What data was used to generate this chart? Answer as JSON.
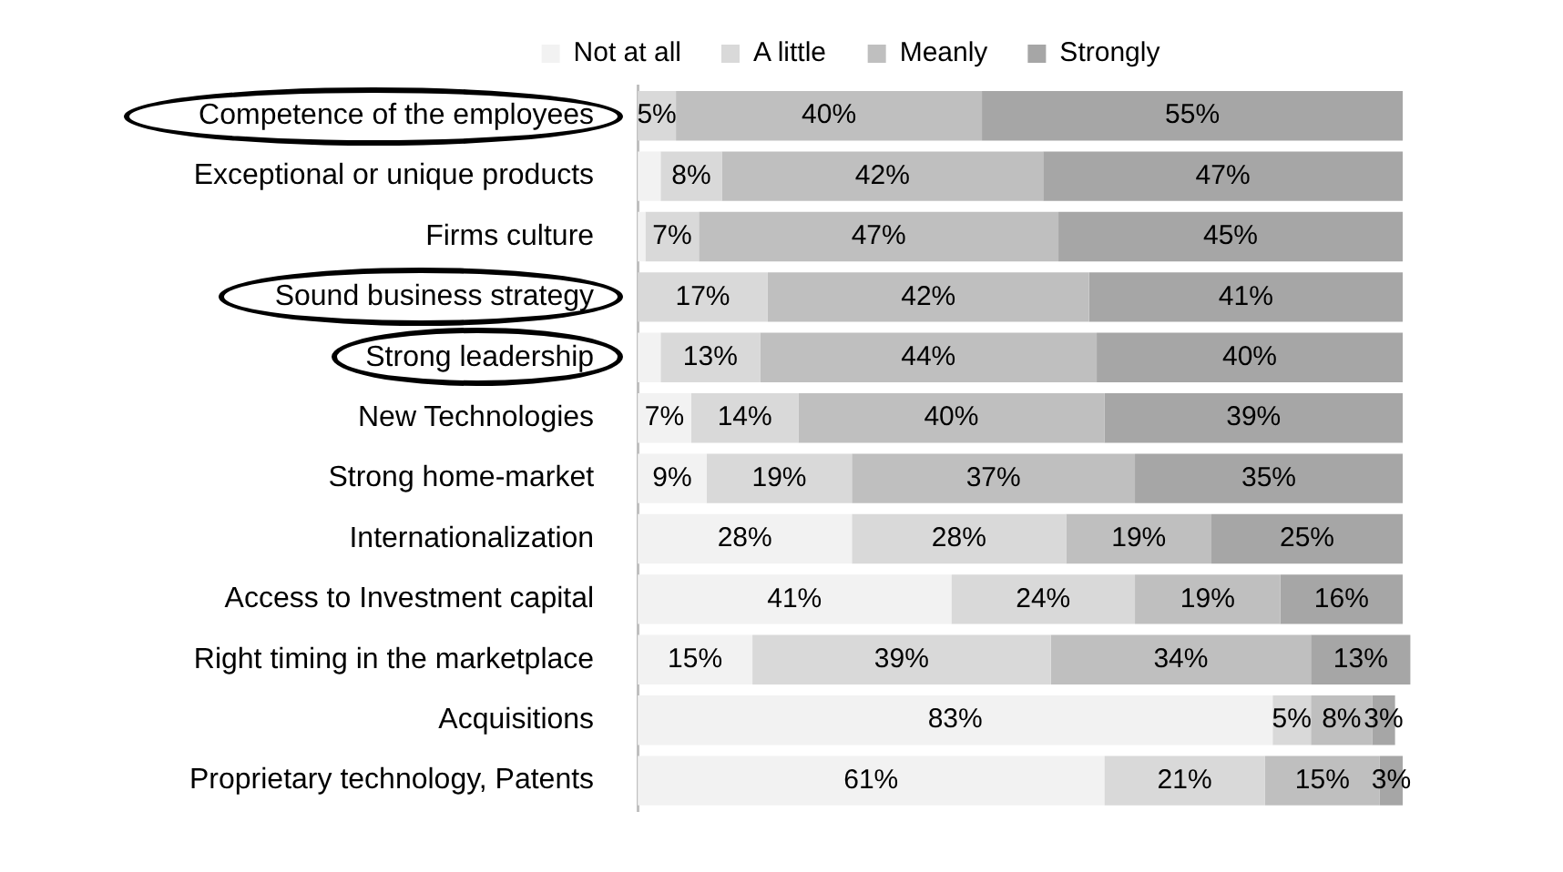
{
  "chart_data": {
    "type": "bar",
    "orientation": "horizontal",
    "stacked": true,
    "legend": "top",
    "tick_labels": "y",
    "categories": [
      "Competence of the employees",
      "Exceptional or unique products",
      "Firms culture",
      "Sound business strategy",
      "Strong leadership",
      "New Technologies",
      "Strong home-market",
      "Internationalization",
      "Access to Investment capital",
      "Right timing in the marketplace",
      "Acquisitions",
      "Proprietary technology, Patents"
    ],
    "series": [
      {
        "name": "Not at all",
        "color": "#f2f2f2",
        "values": [
          0,
          3,
          1,
          0,
          3,
          7,
          9,
          28,
          41,
          15,
          83,
          61
        ],
        "value_labels": [
          null,
          null,
          null,
          null,
          null,
          "7%",
          "9%",
          "28%",
          "41%",
          "15%",
          "83%",
          "61%"
        ]
      },
      {
        "name": "A little",
        "color": "#d9d9d9",
        "values": [
          5,
          8,
          7,
          17,
          13,
          14,
          19,
          28,
          24,
          39,
          5,
          21
        ],
        "value_labels": [
          "5%",
          "8%",
          "7%",
          "17%",
          "13%",
          "14%",
          "19%",
          "28%",
          "24%",
          "39%",
          "5%",
          "21%"
        ]
      },
      {
        "name": "Meanly",
        "color": "#bfbfbf",
        "values": [
          40,
          42,
          47,
          42,
          44,
          40,
          37,
          19,
          19,
          34,
          8,
          15
        ],
        "value_labels": [
          "40%",
          "42%",
          "47%",
          "42%",
          "44%",
          "40%",
          "37%",
          "19%",
          "19%",
          "34%",
          "8%",
          "15%"
        ]
      },
      {
        "name": "Strongly",
        "color": "#a6a6a6",
        "values": [
          55,
          47,
          45,
          41,
          40,
          39,
          35,
          25,
          16,
          13,
          3,
          3
        ],
        "value_labels": [
          "55%",
          "47%",
          "45%",
          "41%",
          "40%",
          "39%",
          "35%",
          "25%",
          "16%",
          "13%",
          "3%",
          "3%"
        ]
      }
    ]
  }
}
